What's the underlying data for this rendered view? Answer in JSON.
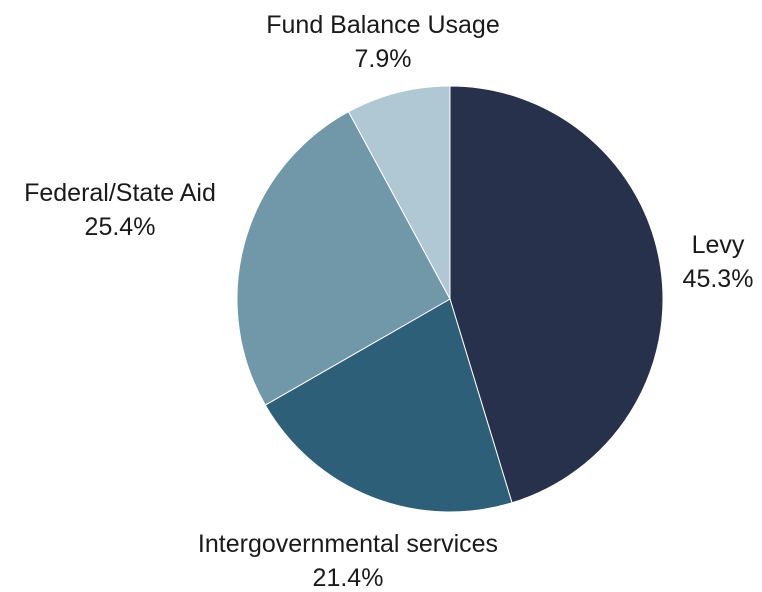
{
  "chart_data": {
    "type": "pie",
    "title": "",
    "start_angle_deg": 0,
    "direction": "clockwise",
    "slices": [
      {
        "label": "Levy",
        "value": 45.3,
        "value_label": "45.3%",
        "color": "#28314b"
      },
      {
        "label": "Intergovernmental services",
        "value": 21.4,
        "value_label": "21.4%",
        "color": "#2e5f78"
      },
      {
        "label": "Federal/State Aid",
        "value": 25.4,
        "value_label": "25.4%",
        "color": "#7198a8"
      },
      {
        "label": "Fund Balance Usage",
        "value": 7.9,
        "value_label": "7.9%",
        "color": "#b0c7d4"
      }
    ]
  }
}
